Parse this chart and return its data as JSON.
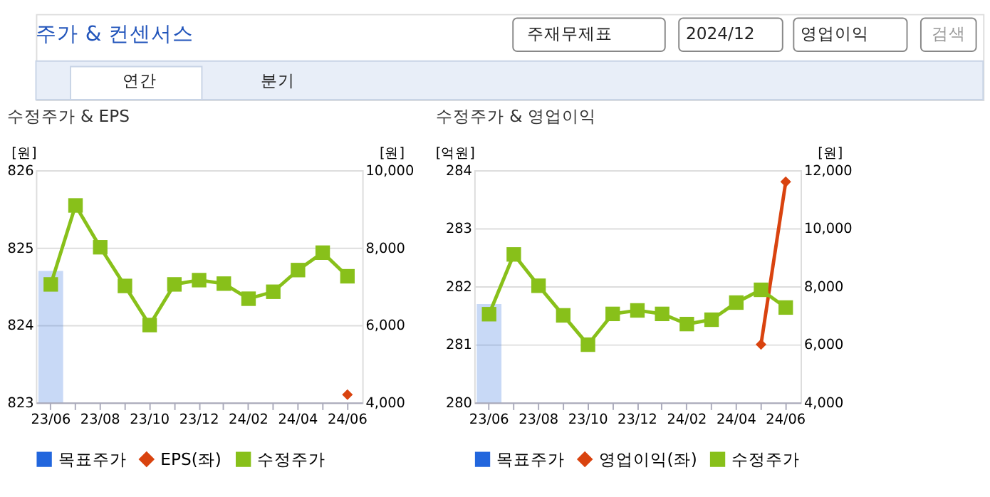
{
  "chart_data": [
    {
      "type": "line",
      "title": "수정주가 & EPS",
      "ylabel": "[원]",
      "y2label": "[원]",
      "annotations": [
        "주가 & 컨센서스",
        "주재무제표",
        "2024/12",
        "영업이익",
        "검색",
        "연간",
        "분기"
      ],
      "categories": [
        "23/06",
        null,
        "23/08",
        null,
        "23/10",
        null,
        "23/12",
        null,
        "24/02",
        null,
        "24/04",
        null,
        "24/06"
      ],
      "series": [
        {
          "name": "목표주가",
          "type": "bar",
          "axis": "y2",
          "color": "#2266dd",
          "marker": "square",
          "values": [
            7400,
            null,
            null,
            null,
            null,
            null,
            null,
            null,
            null,
            null,
            null,
            null,
            null
          ]
        },
        {
          "name": "EPS(좌)",
          "color": "#d9430f",
          "marker": "diamond",
          "values": [
            null,
            null,
            null,
            null,
            null,
            null,
            null,
            null,
            null,
            null,
            null,
            null,
            823.1
          ]
        },
        {
          "name": "수정주가",
          "axis": "y2",
          "color": "#88c01a",
          "marker": "square",
          "values": [
            7050,
            9090,
            8010,
            7010,
            6000,
            7050,
            7160,
            7070,
            6680,
            6860,
            7420,
            7870,
            7260
          ]
        }
      ],
      "ylim": [
        823,
        826
      ],
      "yticks": [
        823,
        824,
        825,
        826
      ],
      "y2lim": [
        4000,
        10000
      ],
      "y2ticks": [
        {
          "value": 4000,
          "label": "4,000"
        },
        {
          "value": 6000,
          "label": "6,000"
        },
        {
          "value": 8000,
          "label": "8,000"
        },
        {
          "value": 10000,
          "label": "10,000"
        }
      ],
      "grid": "y",
      "legend": "bottom"
    },
    {
      "type": "line",
      "title": "수정주가 & 영업이익",
      "ylabel": "[억원]",
      "y2label": "[원]",
      "categories": [
        "23/06",
        null,
        "23/08",
        null,
        "23/10",
        null,
        "23/12",
        null,
        "24/02",
        null,
        "24/04",
        null,
        "24/06"
      ],
      "series": [
        {
          "name": "목표주가",
          "type": "bar",
          "axis": "y2",
          "color": "#2266dd",
          "marker": "square",
          "values": [
            7390,
            null,
            null,
            null,
            null,
            null,
            null,
            null,
            null,
            null,
            null,
            null,
            null
          ]
        },
        {
          "name": "영업이익(좌)",
          "color": "#d9430f",
          "marker": "diamond",
          "values": [
            null,
            null,
            null,
            null,
            null,
            null,
            null,
            null,
            null,
            null,
            null,
            281.0,
            283.8
          ]
        },
        {
          "name": "수정주가",
          "axis": "y2",
          "color": "#88c01a",
          "marker": "square",
          "values": [
            7040,
            9100,
            8020,
            7000,
            5990,
            7050,
            7170,
            7050,
            6700,
            6850,
            7440,
            7880,
            7270
          ]
        }
      ],
      "ylim": [
        280,
        284
      ],
      "yticks": [
        280,
        281,
        282,
        283,
        284
      ],
      "y2lim": [
        4000,
        12000
      ],
      "y2ticks": [
        {
          "value": 4000,
          "label": "4,000"
        },
        {
          "value": 6000,
          "label": "6,000"
        },
        {
          "value": 8000,
          "label": "8,000"
        },
        {
          "value": 10000,
          "label": "10,000"
        },
        {
          "value": 12000,
          "label": "12,000"
        }
      ],
      "grid": "y",
      "legend": "bottom"
    }
  ]
}
